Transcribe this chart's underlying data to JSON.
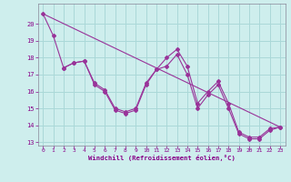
{
  "background_color": "#ceeeed",
  "line_color": "#993399",
  "grid_color": "#aad8d8",
  "xlabel": "Windchill (Refroidissement éolien,°C)",
  "xlabel_color": "#880088",
  "tick_color": "#880088",
  "xlim": [
    -0.5,
    23.5
  ],
  "ylim": [
    12.8,
    21.2
  ],
  "yticks": [
    13,
    14,
    15,
    16,
    17,
    18,
    19,
    20
  ],
  "xticks": [
    0,
    1,
    2,
    3,
    4,
    5,
    6,
    7,
    8,
    9,
    10,
    11,
    12,
    13,
    14,
    15,
    16,
    17,
    18,
    19,
    20,
    21,
    22,
    23
  ],
  "line1_x": [
    0,
    1,
    2,
    3,
    4,
    5,
    6,
    7,
    8,
    9,
    10,
    11,
    12,
    13,
    14,
    15,
    16,
    17,
    18,
    19,
    20,
    21,
    22,
    23
  ],
  "line1_y": [
    20.6,
    19.3,
    17.4,
    17.7,
    17.8,
    16.5,
    16.1,
    15.0,
    14.8,
    15.0,
    16.5,
    17.3,
    18.0,
    18.5,
    17.5,
    15.3,
    16.0,
    16.6,
    15.3,
    13.6,
    13.3,
    13.3,
    13.8,
    13.9
  ],
  "line2_x": [
    2,
    3,
    4,
    5,
    6,
    7,
    8,
    9,
    10,
    11,
    12,
    13,
    14,
    15,
    16,
    17,
    18,
    19,
    20,
    21,
    22,
    23
  ],
  "line2_y": [
    17.4,
    17.7,
    17.8,
    16.4,
    16.0,
    14.9,
    14.7,
    14.9,
    16.4,
    17.3,
    17.5,
    18.2,
    17.0,
    15.0,
    15.8,
    16.4,
    15.0,
    13.5,
    13.2,
    13.2,
    13.7,
    13.9
  ],
  "trend_x": [
    0,
    23
  ],
  "trend_y": [
    20.6,
    13.9
  ]
}
